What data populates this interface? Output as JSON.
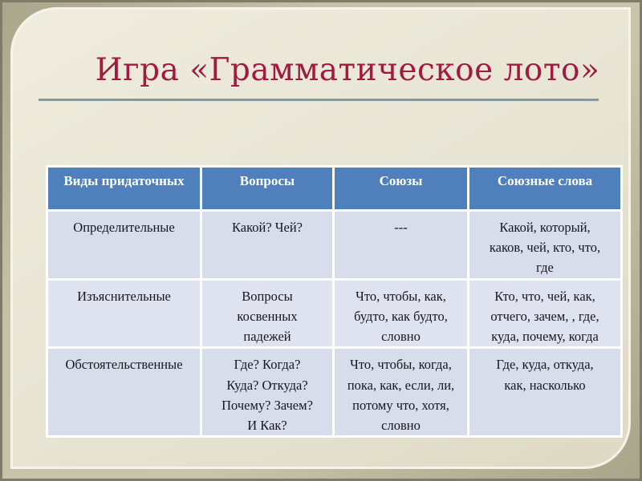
{
  "slide": {
    "title": "Игра «Грамматическое лото»"
  },
  "table": {
    "headers": [
      "Виды придаточных",
      "Вопросы",
      "Союзы",
      "Союзные слова"
    ],
    "rows": [
      {
        "cells": [
          "Определительные",
          "Какой? Чей?",
          "---",
          [
            "Какой, который,",
            "каков, чей, кто, что,",
            "где"
          ]
        ]
      },
      {
        "cells": [
          "Изъяснительные",
          [
            "Вопросы",
            "косвенных",
            "падежей"
          ],
          [
            "Что, чтобы, как,",
            "будто, как будто,",
            "словно"
          ],
          [
            "Кто, что, чей, как,",
            "отчего, зачем, , где,",
            "куда, почему, когда"
          ]
        ]
      },
      {
        "cells": [
          "Обстоятельственные",
          [
            "Где? Когда?",
            "Куда? Откуда?",
            "Почему? Зачем?",
            "И  Как?"
          ],
          [
            "Что, чтобы, когда,",
            "пока, как, если, ли,",
            "потому что, хотя,",
            "словно"
          ],
          [
            "Где, куда, откуда,",
            "как, насколько"
          ]
        ]
      }
    ]
  },
  "colors": {
    "header_bg": "#4f80bb",
    "header_text": "#ffffff",
    "row_bg": "#d8ddeb",
    "row_bg_alt": "#dfe3f0",
    "cell_text": "#17171f",
    "title_text": "#a01b3f",
    "title_rule": "#8495ad",
    "panel_bg": "#e8e5d5",
    "frame_bg": "#c6c2a8"
  }
}
